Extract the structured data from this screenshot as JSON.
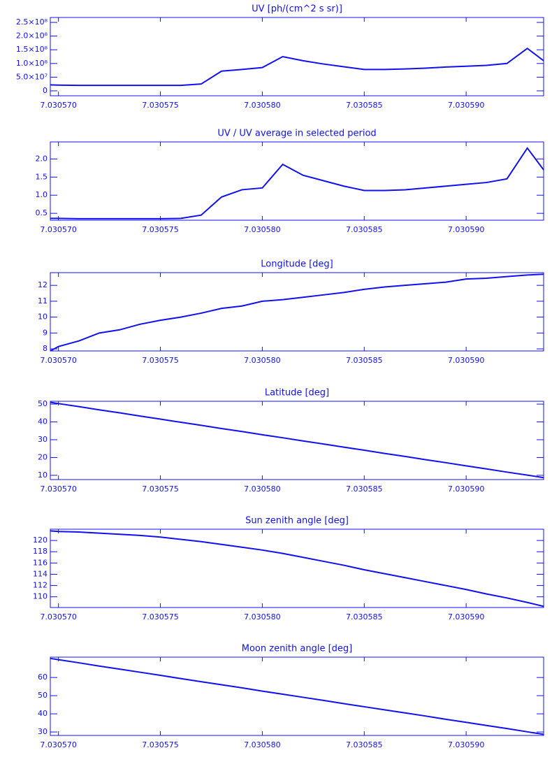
{
  "chart_data": [
    {
      "type": "line",
      "title": "UV [ph/(cm^2 s sr)]",
      "color": "#1010f0",
      "x": [
        7.0305696,
        7.03057,
        7.030571,
        7.030572,
        7.030573,
        7.030574,
        7.030575,
        7.030576,
        7.030577,
        7.030578,
        7.030579,
        7.03058,
        7.030581,
        7.030582,
        7.030583,
        7.030584,
        7.030585,
        7.030586,
        7.030587,
        7.030588,
        7.030589,
        7.03059,
        7.030591,
        7.030592,
        7.030593,
        7.0305938
      ],
      "values": [
        22000000,
        21000000,
        20000000,
        20000000,
        20000000,
        20000000,
        20000000,
        20000000,
        25000000,
        72000000,
        78000000,
        85000000,
        125000000,
        110000000,
        98000000,
        88000000,
        78000000,
        78000000,
        80000000,
        83000000,
        87000000,
        90000000,
        93000000,
        100000000,
        155000000,
        110000000
      ],
      "xlim": [
        7.0305696,
        7.0305938
      ],
      "xticks": [
        {
          "value": 7.03057,
          "label": "7.030570"
        },
        {
          "value": 7.030575,
          "label": "7.030575"
        },
        {
          "value": 7.03058,
          "label": "7.030580"
        },
        {
          "value": 7.030585,
          "label": "7.030585"
        },
        {
          "value": 7.03059,
          "label": "7.030590"
        }
      ],
      "ylim": [
        -18000000,
        268000000
      ],
      "yticks": [
        0,
        {
          "value": 50000000,
          "label": "5.0×10⁷"
        },
        {
          "value": 100000000,
          "label": "1.0×10⁸"
        },
        {
          "value": 150000000,
          "label": "1.5×10⁸"
        },
        {
          "value": 200000000,
          "label": "2.0×10⁸"
        },
        {
          "value": 250000000,
          "label": "2.5×10⁸"
        }
      ]
    },
    {
      "type": "line",
      "title": "UV / UV average in selected period",
      "color": "#1010f0",
      "x": [
        7.0305696,
        7.03057,
        7.030571,
        7.030572,
        7.030573,
        7.030574,
        7.030575,
        7.030576,
        7.030577,
        7.030578,
        7.030579,
        7.03058,
        7.030581,
        7.030582,
        7.030583,
        7.030584,
        7.030585,
        7.030586,
        7.030587,
        7.030588,
        7.030589,
        7.03059,
        7.030591,
        7.030592,
        7.030593,
        7.0305938
      ],
      "values": [
        0.36,
        0.36,
        0.35,
        0.35,
        0.35,
        0.35,
        0.35,
        0.36,
        0.45,
        0.95,
        1.15,
        1.2,
        1.85,
        1.55,
        1.4,
        1.25,
        1.13,
        1.13,
        1.15,
        1.2,
        1.25,
        1.3,
        1.35,
        1.45,
        2.3,
        1.7
      ],
      "xlim": [
        7.0305696,
        7.0305938
      ],
      "xticks": [
        {
          "value": 7.03057,
          "label": "7.030570"
        },
        {
          "value": 7.030575,
          "label": "7.030575"
        },
        {
          "value": 7.03058,
          "label": "7.030580"
        },
        {
          "value": 7.030585,
          "label": "7.030585"
        },
        {
          "value": 7.03059,
          "label": "7.030590"
        }
      ],
      "ylim": [
        0.31,
        2.47
      ],
      "yticks": [
        0.5,
        {
          "value": 1,
          "label": "1.0"
        },
        1.5,
        {
          "value": 2,
          "label": "2.0"
        }
      ]
    },
    {
      "type": "line",
      "title": "Longitude [deg]",
      "color": "#1010f0",
      "x": [
        7.0305696,
        7.03057,
        7.030571,
        7.030572,
        7.030573,
        7.030574,
        7.030575,
        7.030576,
        7.030577,
        7.030578,
        7.030579,
        7.03058,
        7.030581,
        7.030582,
        7.030583,
        7.030584,
        7.030585,
        7.030586,
        7.030587,
        7.030588,
        7.030589,
        7.03059,
        7.030591,
        7.030592,
        7.030593,
        7.0305938
      ],
      "values": [
        7.87,
        8.15,
        8.5,
        9.0,
        9.2,
        9.55,
        9.8,
        10.0,
        10.25,
        10.55,
        10.7,
        11.0,
        11.1,
        11.25,
        11.4,
        11.55,
        11.75,
        11.9,
        12.0,
        12.1,
        12.2,
        12.4,
        12.45,
        12.55,
        12.65,
        12.7
      ],
      "xlim": [
        7.0305696,
        7.0305938
      ],
      "xticks": [
        {
          "value": 7.03057,
          "label": "7.030570"
        },
        {
          "value": 7.030575,
          "label": "7.030575"
        },
        {
          "value": 7.03058,
          "label": "7.030580"
        },
        {
          "value": 7.030585,
          "label": "7.030585"
        },
        {
          "value": 7.03059,
          "label": "7.030590"
        }
      ],
      "ylim": [
        7.87,
        12.8
      ],
      "yticks": [
        8,
        9,
        10,
        11,
        12
      ]
    },
    {
      "type": "line",
      "title": "Latitude [deg]",
      "color": "#1010f0",
      "x": [
        7.0305696,
        7.03057,
        7.030571,
        7.030572,
        7.030573,
        7.030574,
        7.030575,
        7.030576,
        7.030577,
        7.030578,
        7.030579,
        7.03058,
        7.030581,
        7.030582,
        7.030583,
        7.030584,
        7.030585,
        7.030586,
        7.030587,
        7.030588,
        7.030589,
        7.03059,
        7.030591,
        7.030592,
        7.030593,
        7.0305938
      ],
      "values": [
        51.0,
        50.3,
        48.6,
        46.8,
        45.1,
        43.3,
        41.6,
        39.8,
        38.1,
        36.3,
        34.6,
        32.8,
        31.1,
        29.3,
        27.6,
        25.8,
        24.1,
        22.3,
        20.6,
        18.8,
        17.1,
        15.3,
        13.6,
        11.8,
        10.1,
        8.7
      ],
      "xlim": [
        7.0305696,
        7.0305938
      ],
      "xticks": [
        {
          "value": 7.03057,
          "label": "7.030570"
        },
        {
          "value": 7.030575,
          "label": "7.030575"
        },
        {
          "value": 7.03058,
          "label": "7.030580"
        },
        {
          "value": 7.030585,
          "label": "7.030585"
        },
        {
          "value": 7.03059,
          "label": "7.030590"
        }
      ],
      "ylim": [
        7.6,
        51.6
      ],
      "yticks": [
        10,
        20,
        30,
        40,
        50
      ]
    },
    {
      "type": "line",
      "title": "Sun zenith angle [deg]",
      "color": "#1010f0",
      "x": [
        7.0305696,
        7.03057,
        7.030571,
        7.030572,
        7.030573,
        7.030574,
        7.030575,
        7.030576,
        7.030577,
        7.030578,
        7.030579,
        7.03058,
        7.030581,
        7.030582,
        7.030583,
        7.030584,
        7.030585,
        7.030586,
        7.030587,
        7.030588,
        7.030589,
        7.03059,
        7.030591,
        7.030592,
        7.030593,
        7.0305938
      ],
      "values": [
        121.7,
        121.6,
        121.5,
        121.3,
        121.1,
        120.9,
        120.6,
        120.2,
        119.8,
        119.3,
        118.8,
        118.3,
        117.7,
        117.0,
        116.3,
        115.6,
        114.8,
        114.1,
        113.4,
        112.7,
        112.0,
        111.3,
        110.5,
        109.8,
        109.0,
        108.3
      ],
      "xlim": [
        7.0305696,
        7.0305938
      ],
      "xticks": [
        {
          "value": 7.03057,
          "label": "7.030570"
        },
        {
          "value": 7.030575,
          "label": "7.030575"
        },
        {
          "value": 7.03058,
          "label": "7.030580"
        },
        {
          "value": 7.030585,
          "label": "7.030585"
        },
        {
          "value": 7.03059,
          "label": "7.030590"
        }
      ],
      "ylim": [
        108.1,
        122.0
      ],
      "yticks": [
        110,
        112,
        114,
        116,
        118,
        120
      ]
    },
    {
      "type": "line",
      "title": "Moon zenith angle [deg]",
      "color": "#1010f0",
      "x": [
        7.0305696,
        7.03057,
        7.030571,
        7.030572,
        7.030573,
        7.030574,
        7.030575,
        7.030576,
        7.030577,
        7.030578,
        7.030579,
        7.03058,
        7.030581,
        7.030582,
        7.030583,
        7.030584,
        7.030585,
        7.030586,
        7.030587,
        7.030588,
        7.030589,
        7.03059,
        7.030591,
        7.030592,
        7.030593,
        7.0305938
      ],
      "values": [
        70.5,
        69.8,
        68.1,
        66.3,
        64.6,
        62.9,
        61.2,
        59.4,
        57.7,
        56.0,
        54.3,
        52.5,
        50.8,
        49.1,
        47.4,
        45.6,
        43.9,
        42.2,
        40.5,
        38.8,
        37.0,
        35.3,
        33.6,
        31.9,
        30.1,
        28.7
      ],
      "xlim": [
        7.0305696,
        7.0305938
      ],
      "xticks": [
        {
          "value": 7.03057,
          "label": "7.030570"
        },
        {
          "value": 7.030575,
          "label": "7.030575"
        },
        {
          "value": 7.03058,
          "label": "7.030580"
        },
        {
          "value": 7.030585,
          "label": "7.030585"
        },
        {
          "value": 7.03059,
          "label": "7.030590"
        }
      ],
      "ylim": [
        28.1,
        71.2
      ],
      "yticks": [
        30,
        40,
        50,
        60
      ]
    }
  ]
}
